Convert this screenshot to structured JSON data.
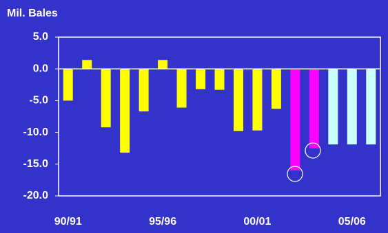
{
  "chart_data": {
    "type": "bar",
    "y_label": "Mil. Bales",
    "categories": [
      "90/91",
      null,
      null,
      null,
      null,
      "95/96",
      null,
      null,
      null,
      null,
      "00/01",
      null,
      null,
      null,
      null,
      "05/06",
      null
    ],
    "values": [
      -5.0,
      1.4,
      -9.2,
      -13.2,
      -6.7,
      1.4,
      -6.1,
      -3.2,
      -3.3,
      -9.8,
      -9.7,
      -6.3,
      -16.0,
      -12.5,
      -11.9,
      -11.9,
      -11.9
    ],
    "colors": [
      "#ffff00",
      "#ffff00",
      "#ffff00",
      "#ffff00",
      "#ffff00",
      "#ffff00",
      "#ffff00",
      "#ffff00",
      "#ffff00",
      "#ffff00",
      "#ffff00",
      "#ffff00",
      "#ff00ff",
      "#ff00ff",
      "#ccffff",
      "#ccffff",
      "#ccffff"
    ],
    "ylim": [
      -20,
      5
    ],
    "yticks": [
      {
        "value": 5,
        "label": "5.0"
      },
      {
        "value": 0,
        "label": "0.0"
      },
      {
        "value": -5,
        "label": "-5.0"
      },
      {
        "value": -10,
        "label": "-10.0"
      },
      {
        "value": -15,
        "label": "-15.0"
      },
      {
        "value": -20,
        "label": "-20.0"
      }
    ],
    "grid": false
  }
}
